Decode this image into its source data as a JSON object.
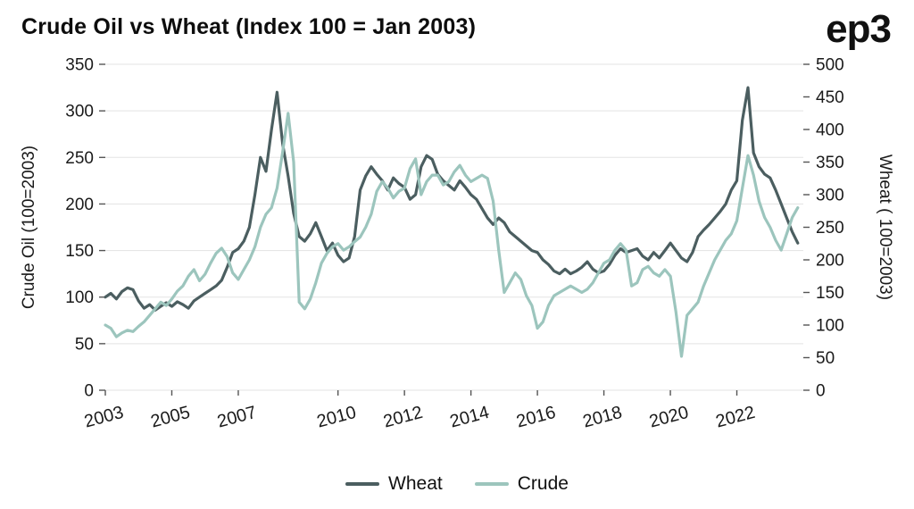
{
  "header": {
    "title": "Crude Oil vs Wheat (Index 100 = Jan 2003)",
    "logo": "ep3"
  },
  "chart_data": {
    "type": "line",
    "title": "Crude Oil vs Wheat (Index 100 = Jan 2003)",
    "grid": "horizontal",
    "legend_position": "bottom-center",
    "colors": {
      "wheat_line": "#4b5e60",
      "crude_line": "#9cc5bd",
      "gridline": "#e3e3e3",
      "tick_text": "#1a1a1a"
    },
    "left_axis": {
      "label": "Crude Oil (100=2003)",
      "min": 0,
      "max": 350,
      "ticks": [
        0,
        50,
        100,
        150,
        200,
        250,
        300,
        350
      ]
    },
    "right_axis": {
      "label": "Wheat ( 100=2003)",
      "min": 0,
      "max": 500,
      "ticks": [
        0,
        50,
        100,
        150,
        200,
        250,
        300,
        350,
        400,
        450,
        500
      ]
    },
    "x_axis": {
      "min": 2003,
      "max": 2024,
      "tick_values": [
        2003,
        2005,
        2007,
        2010,
        2012,
        2014,
        2016,
        2018,
        2020,
        2022
      ],
      "tick_labels": [
        "2003",
        "2005",
        "2007",
        "2010",
        "2012",
        "2014",
        "2016",
        "2018",
        "2020",
        "2022"
      ]
    },
    "series": [
      {
        "name": "Wheat",
        "color": "#4b5e60",
        "axis": "left",
        "x_start": 2003.0,
        "x_step": 0.16667,
        "values": [
          100,
          104,
          98,
          106,
          110,
          108,
          96,
          88,
          92,
          86,
          90,
          94,
          90,
          95,
          92,
          88,
          96,
          100,
          104,
          108,
          112,
          118,
          132,
          148,
          152,
          160,
          175,
          210,
          250,
          235,
          280,
          320,
          265,
          230,
          190,
          165,
          160,
          168,
          180,
          165,
          150,
          158,
          145,
          138,
          142,
          165,
          215,
          230,
          240,
          232,
          225,
          215,
          228,
          222,
          218,
          205,
          210,
          240,
          252,
          248,
          232,
          225,
          220,
          215,
          225,
          218,
          210,
          205,
          195,
          185,
          178,
          185,
          180,
          170,
          165,
          160,
          155,
          150,
          148,
          140,
          135,
          128,
          125,
          130,
          125,
          128,
          132,
          138,
          130,
          126,
          128,
          135,
          145,
          152,
          148,
          150,
          152,
          144,
          140,
          148,
          142,
          150,
          158,
          150,
          142,
          138,
          148,
          165,
          172,
          178,
          185,
          192,
          200,
          215,
          225,
          290,
          325,
          255,
          240,
          232,
          228,
          215,
          200,
          185,
          170,
          158
        ]
      },
      {
        "name": "Crude",
        "color": "#9cc5bd",
        "axis": "right",
        "x_start": 2003.0,
        "x_step": 0.16667,
        "values": [
          100,
          95,
          82,
          88,
          92,
          90,
          98,
          105,
          115,
          125,
          135,
          130,
          140,
          152,
          160,
          175,
          185,
          168,
          178,
          195,
          210,
          218,
          205,
          180,
          170,
          185,
          200,
          220,
          250,
          270,
          280,
          310,
          365,
          425,
          350,
          135,
          125,
          140,
          165,
          195,
          210,
          220,
          225,
          215,
          220,
          228,
          235,
          250,
          270,
          305,
          320,
          310,
          295,
          305,
          310,
          340,
          355,
          300,
          320,
          330,
          330,
          315,
          320,
          335,
          345,
          330,
          320,
          325,
          330,
          325,
          290,
          215,
          150,
          165,
          180,
          170,
          145,
          130,
          95,
          105,
          130,
          145,
          150,
          155,
          160,
          155,
          150,
          155,
          165,
          180,
          195,
          200,
          215,
          225,
          215,
          160,
          165,
          185,
          190,
          180,
          175,
          185,
          175,
          120,
          52,
          115,
          125,
          135,
          160,
          180,
          200,
          215,
          230,
          240,
          260,
          310,
          360,
          330,
          290,
          265,
          250,
          230,
          215,
          240,
          265,
          280
        ]
      }
    ],
    "legend": [
      "Wheat",
      "Crude"
    ]
  }
}
